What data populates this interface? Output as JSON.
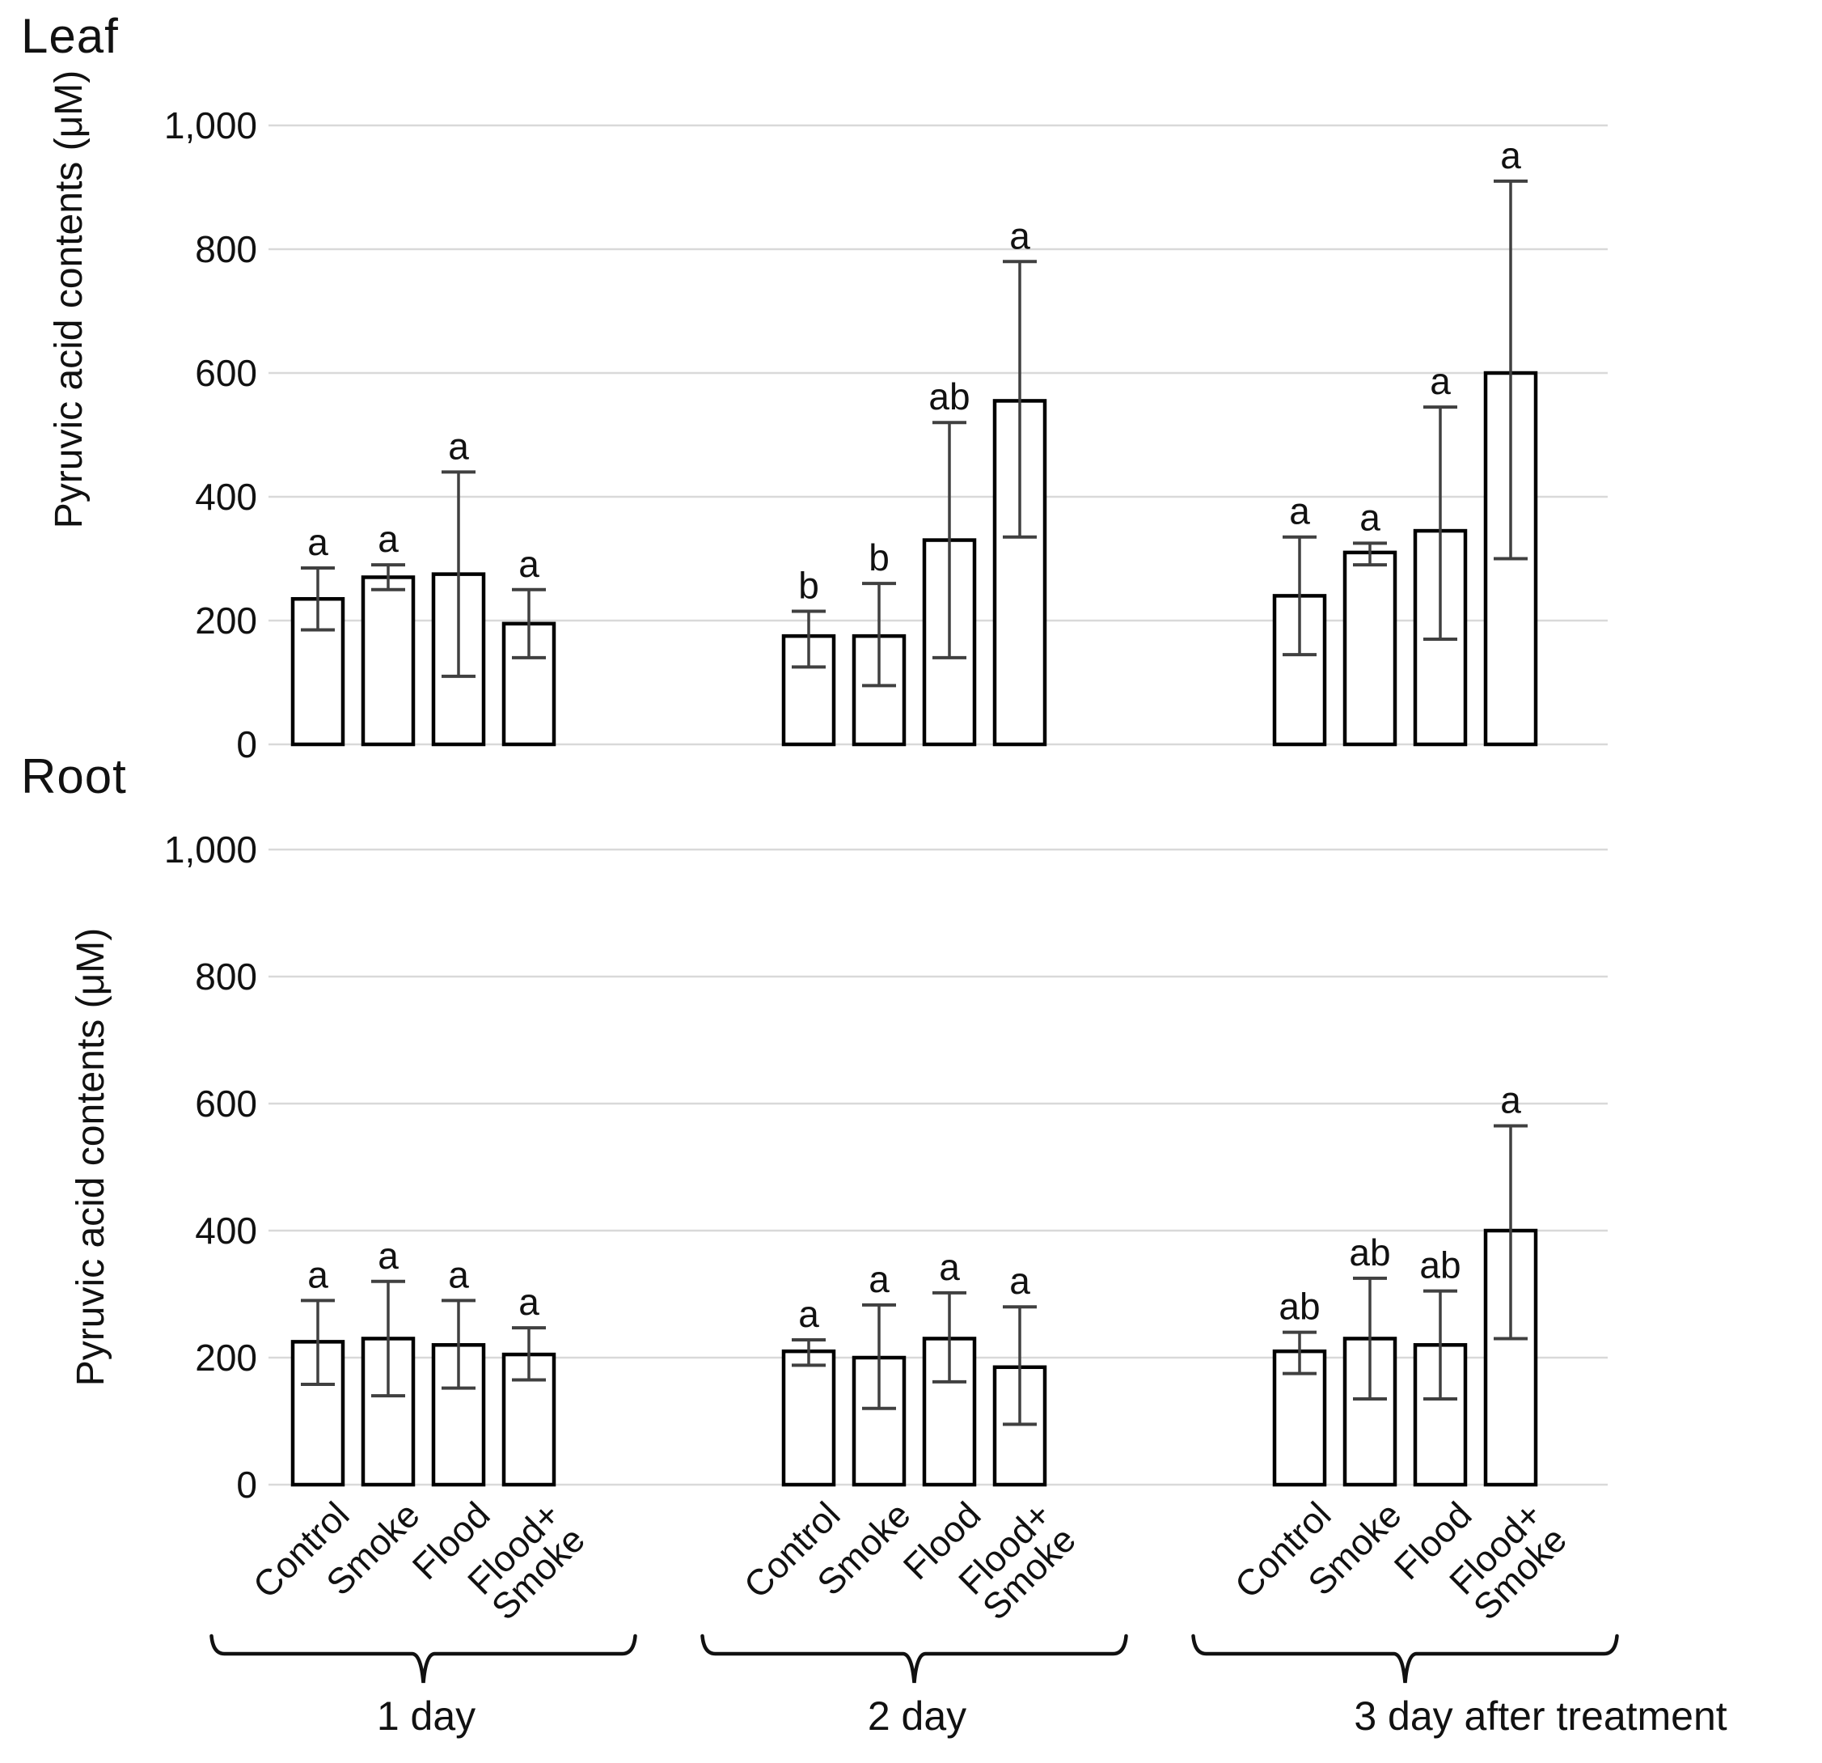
{
  "figure_type": "grouped bar charts with error bars",
  "colors": {
    "background": "#ffffff",
    "bar_fill": "#ffffff",
    "bar_outline": "#000000",
    "error_bar": "#404040",
    "gridline": "#d9d9d9",
    "text": "#111111"
  },
  "group_labels": [
    "1 day",
    "2 day",
    "3 day after treatment"
  ],
  "treatments": [
    "Control",
    "Smoke",
    "Flood",
    "Flood+\nSmoke"
  ],
  "chart_data": [
    {
      "type": "bar",
      "title": "Leaf",
      "y_axis_label": "Pyruvic acid contents (μM)",
      "ylim": [
        0,
        1000
      ],
      "y_tick_values": [
        0,
        200,
        400,
        600,
        800,
        1000
      ],
      "y_tick_labels": [
        "0",
        "200",
        "400",
        "600",
        "800",
        "1,000"
      ],
      "grid": "horizontal",
      "groups": [
        {
          "period": "1 day",
          "bars": [
            {
              "treatment": "Control",
              "value": 235,
              "err_low": 185,
              "err_high": 285,
              "letter": "a"
            },
            {
              "treatment": "Smoke",
              "value": 270,
              "err_low": 250,
              "err_high": 290,
              "letter": "a"
            },
            {
              "treatment": "Flood",
              "value": 275,
              "err_low": 110,
              "err_high": 440,
              "letter": "a"
            },
            {
              "treatment": "Flood+\nSmoke",
              "value": 195,
              "err_low": 140,
              "err_high": 250,
              "letter": "a"
            }
          ]
        },
        {
          "period": "2 day",
          "bars": [
            {
              "treatment": "Control",
              "value": 175,
              "err_low": 125,
              "err_high": 215,
              "letter": "b"
            },
            {
              "treatment": "Smoke",
              "value": 175,
              "err_low": 95,
              "err_high": 260,
              "letter": "b"
            },
            {
              "treatment": "Flood",
              "value": 330,
              "err_low": 140,
              "err_high": 520,
              "letter": "ab"
            },
            {
              "treatment": "Flood+\nSmoke",
              "value": 555,
              "err_low": 335,
              "err_high": 780,
              "letter": "a"
            }
          ]
        },
        {
          "period": "3 day after treatment",
          "bars": [
            {
              "treatment": "Control",
              "value": 240,
              "err_low": 145,
              "err_high": 335,
              "letter": "a"
            },
            {
              "treatment": "Smoke",
              "value": 310,
              "err_low": 290,
              "err_high": 325,
              "letter": "a"
            },
            {
              "treatment": "Flood",
              "value": 345,
              "err_low": 170,
              "err_high": 545,
              "letter": "a"
            },
            {
              "treatment": "Flood+\nSmoke",
              "value": 600,
              "err_low": 300,
              "err_high": 910,
              "letter": "a"
            }
          ]
        }
      ]
    },
    {
      "type": "bar",
      "title": "Root",
      "y_axis_label": "Pyruvic acid contents (μM)",
      "ylim": [
        0,
        1000
      ],
      "y_tick_values": [
        0,
        200,
        400,
        600,
        800,
        1000
      ],
      "y_tick_labels": [
        "0",
        "200",
        "400",
        "600",
        "800",
        "1,000"
      ],
      "grid": "horizontal",
      "groups": [
        {
          "period": "1 day",
          "bars": [
            {
              "treatment": "Control",
              "value": 225,
              "err_low": 158,
              "err_high": 290,
              "letter": "a"
            },
            {
              "treatment": "Smoke",
              "value": 230,
              "err_low": 140,
              "err_high": 320,
              "letter": "a"
            },
            {
              "treatment": "Flood",
              "value": 220,
              "err_low": 152,
              "err_high": 290,
              "letter": "a"
            },
            {
              "treatment": "Flood+\nSmoke",
              "value": 205,
              "err_low": 165,
              "err_high": 247,
              "letter": "a"
            }
          ]
        },
        {
          "period": "2 day",
          "bars": [
            {
              "treatment": "Control",
              "value": 210,
              "err_low": 188,
              "err_high": 228,
              "letter": "a"
            },
            {
              "treatment": "Smoke",
              "value": 200,
              "err_low": 120,
              "err_high": 283,
              "letter": "a"
            },
            {
              "treatment": "Flood",
              "value": 230,
              "err_low": 162,
              "err_high": 302,
              "letter": "a"
            },
            {
              "treatment": "Flood+\nSmoke",
              "value": 185,
              "err_low": 95,
              "err_high": 280,
              "letter": "a"
            }
          ]
        },
        {
          "period": "3 day after treatment",
          "bars": [
            {
              "treatment": "Control",
              "value": 210,
              "err_low": 175,
              "err_high": 240,
              "letter": "ab"
            },
            {
              "treatment": "Smoke",
              "value": 230,
              "err_low": 135,
              "err_high": 325,
              "letter": "ab"
            },
            {
              "treatment": "Flood",
              "value": 220,
              "err_low": 135,
              "err_high": 305,
              "letter": "ab"
            },
            {
              "treatment": "Flood+\nSmoke",
              "value": 400,
              "err_low": 230,
              "err_high": 565,
              "letter": "a"
            }
          ]
        }
      ]
    }
  ]
}
